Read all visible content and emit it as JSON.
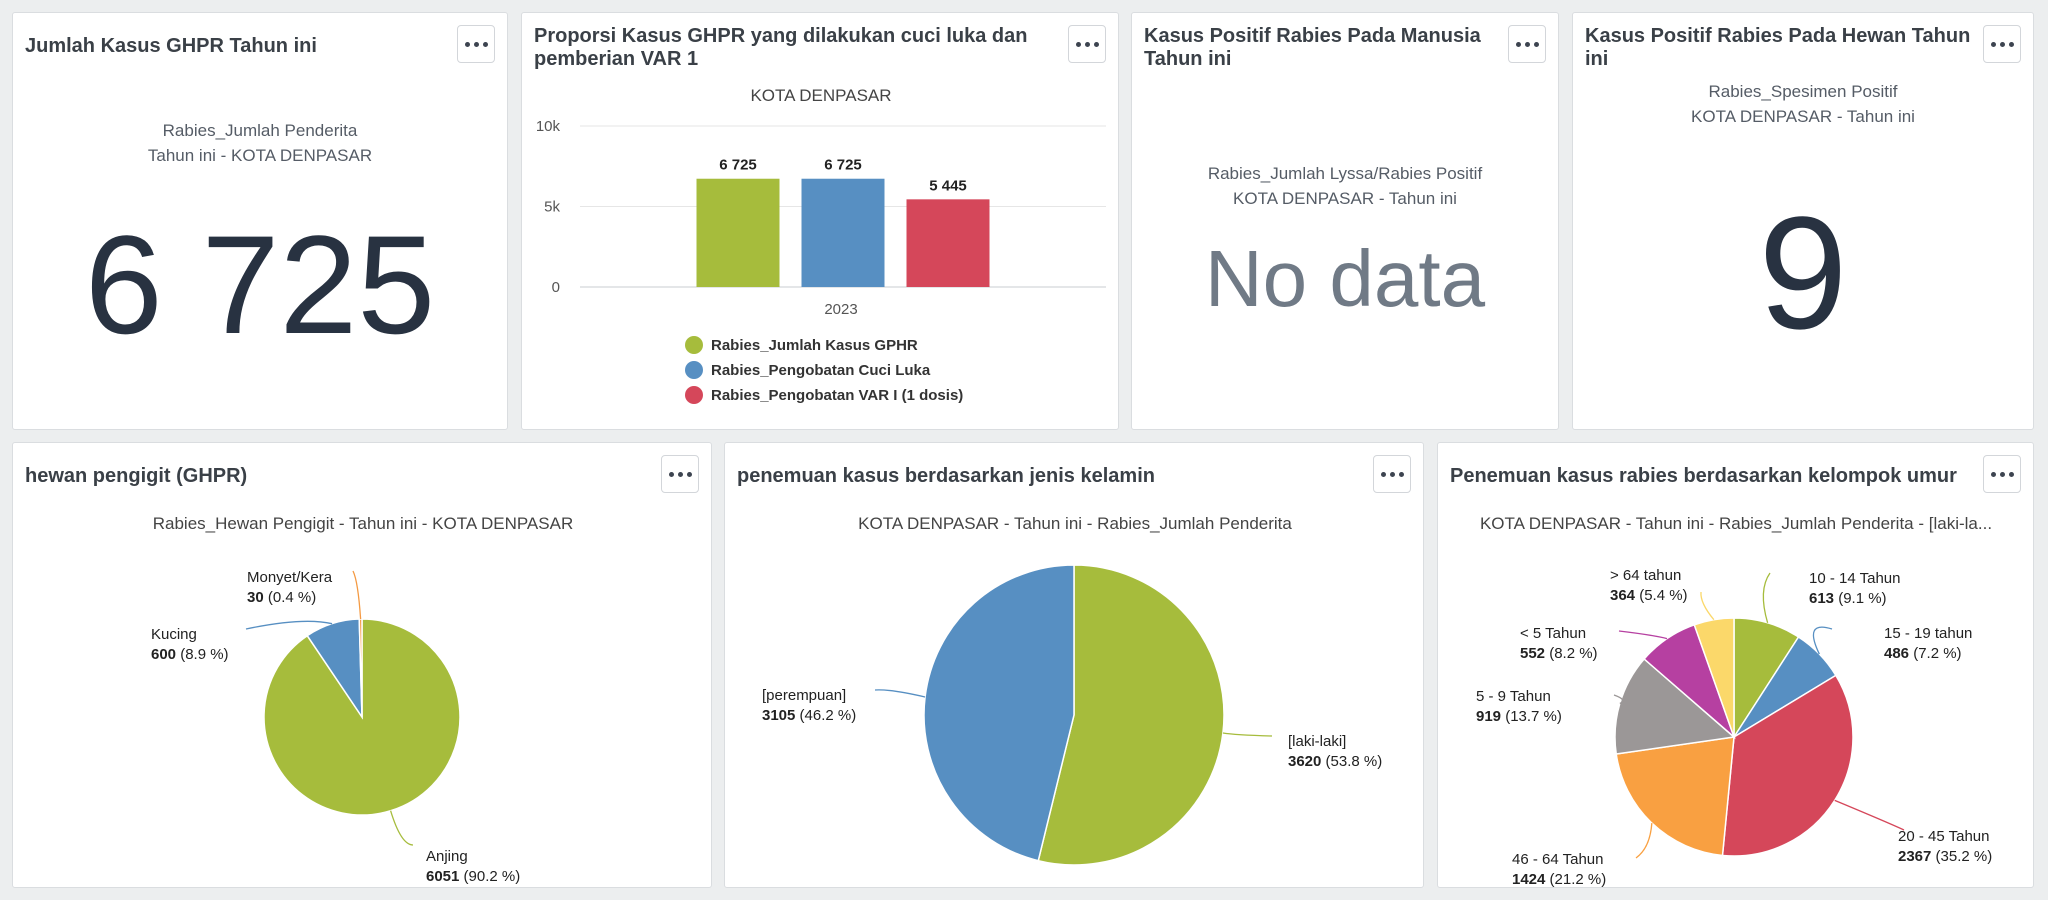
{
  "cards": {
    "ghpr_total": {
      "title": "Jumlah Kasus GHPR Tahun ini",
      "subtitle_line1": "Rabies_Jumlah Penderita",
      "subtitle_line2": "Tahun ini - KOTA DENPASAR",
      "value": "6 725"
    },
    "ghpr_proportion": {
      "title_line1": "Proporsi Kasus GHPR yang dilakukan cuci luka dan",
      "title_line2": "pemberian VAR 1"
    },
    "human_rabies": {
      "title_line1": "Kasus Positif Rabies Pada Manusia",
      "title_line2": "Tahun ini",
      "subtitle_line1": "Rabies_Jumlah Lyssa/Rabies Positif",
      "subtitle_line2": "KOTA DENPASAR - Tahun ini",
      "value": "No data"
    },
    "animal_rabies": {
      "title_line1": "Kasus Positif Rabies Pada Hewan Tahun",
      "title_line2": "ini",
      "subtitle_line1": "Rabies_Spesimen Positif",
      "subtitle_line2": "KOTA DENPASAR - Tahun ini",
      "value": "9"
    },
    "biting_animal": {
      "title": "hewan pengigit (GHPR)"
    },
    "gender": {
      "title": "penemuan kasus berdasarkan jenis kelamin"
    },
    "age_group": {
      "title": "Penemuan kasus rabies berdasarkan kelompok umur"
    }
  },
  "chart_data": [
    {
      "type": "bar",
      "title": "KOTA DENPASAR",
      "categories": [
        "2023"
      ],
      "series": [
        {
          "name": "Rabies_Jumlah Kasus GPHR",
          "values": [
            6725
          ],
          "label": "6 725",
          "color": "#a6bc3c"
        },
        {
          "name": "Rabies_Pengobatan Cuci Luka",
          "values": [
            6725
          ],
          "label": "6 725",
          "color": "#578fc2"
        },
        {
          "name": "Rabies_Pengobatan VAR I (1 dosis)",
          "values": [
            5445
          ],
          "label": "5 445",
          "color": "#d5475a"
        }
      ],
      "ylim": [
        0,
        10000
      ],
      "yticks": [
        "0",
        "5k",
        "10k"
      ],
      "ytick_values": [
        0,
        5000,
        10000
      ]
    },
    {
      "type": "pie",
      "title": "Rabies_Hewan Pengigit - Tahun ini - KOTA DENPASAR",
      "slices": [
        {
          "name": "Anjing",
          "value": 6051,
          "value_label": "6051",
          "pct": "(90.2 %)",
          "color": "#a6bc3c"
        },
        {
          "name": "Kucing",
          "value": 600,
          "value_label": "600",
          "pct": "(8.9 %)",
          "color": "#578fc2"
        },
        {
          "name": "Monyet/Kera",
          "value": 30,
          "value_label": "30",
          "pct": "(0.4 %)",
          "color": "#f49a43"
        }
      ]
    },
    {
      "type": "pie",
      "title": "KOTA DENPASAR - Tahun ini - Rabies_Jumlah Penderita",
      "slices": [
        {
          "name": "[laki-laki]",
          "value": 3620,
          "value_label": "3620",
          "pct": "(53.8 %)",
          "color": "#a6bc3c"
        },
        {
          "name": "[perempuan]",
          "value": 3105,
          "value_label": "3105",
          "pct": "(46.2 %)",
          "color": "#578fc2"
        }
      ]
    },
    {
      "type": "pie",
      "title": "KOTA DENPASAR - Tahun ini - Rabies_Jumlah Penderita - [laki-la...",
      "slices": [
        {
          "name": "10 - 14 Tahun",
          "value": 613,
          "value_label": "613",
          "pct": "(9.1 %)",
          "color": "#a6bc3c"
        },
        {
          "name": "15 - 19 tahun",
          "value": 486,
          "value_label": "486",
          "pct": "(7.2 %)",
          "color": "#578fc2"
        },
        {
          "name": "20 - 45 Tahun",
          "value": 2367,
          "value_label": "2367",
          "pct": "(35.2 %)",
          "color": "#d5475a"
        },
        {
          "name": "46 - 64 Tahun",
          "value": 1424,
          "value_label": "1424",
          "pct": "(21.2 %)",
          "color": "#f9a041"
        },
        {
          "name": "5 - 9 Tahun",
          "value": 919,
          "value_label": "919",
          "pct": "(13.7 %)",
          "color": "#9b9797"
        },
        {
          "name": "< 5 Tahun",
          "value": 552,
          "value_label": "552",
          "pct": "(8.2 %)",
          "color": "#b640a1"
        },
        {
          "name": "> 64 tahun",
          "value": 364,
          "value_label": "364",
          "pct": "(5.4 %)",
          "color": "#fbd86a"
        }
      ]
    }
  ]
}
